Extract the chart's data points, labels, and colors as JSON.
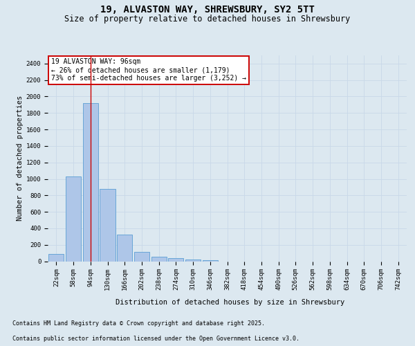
{
  "title_line1": "19, ALVASTON WAY, SHREWSBURY, SY2 5TT",
  "title_line2": "Size of property relative to detached houses in Shrewsbury",
  "xlabel": "Distribution of detached houses by size in Shrewsbury",
  "ylabel": "Number of detached properties",
  "bar_labels": [
    "22sqm",
    "58sqm",
    "94sqm",
    "130sqm",
    "166sqm",
    "202sqm",
    "238sqm",
    "274sqm",
    "310sqm",
    "346sqm",
    "382sqm",
    "418sqm",
    "454sqm",
    "490sqm",
    "526sqm",
    "562sqm",
    "598sqm",
    "634sqm",
    "670sqm",
    "706sqm",
    "742sqm"
  ],
  "bar_values": [
    90,
    1030,
    1920,
    880,
    320,
    115,
    52,
    40,
    25,
    12,
    0,
    0,
    0,
    0,
    0,
    0,
    0,
    0,
    0,
    0,
    0
  ],
  "bar_color": "#aec6e8",
  "bar_edge_color": "#5a9fd4",
  "vline_x_index": 2,
  "vline_color": "#cc0000",
  "annotation_text": "19 ALVASTON WAY: 96sqm\n← 26% of detached houses are smaller (1,179)\n73% of semi-detached houses are larger (3,252) →",
  "annotation_box_color": "#ffffff",
  "annotation_box_edge_color": "#cc0000",
  "ylim": [
    0,
    2500
  ],
  "yticks": [
    0,
    200,
    400,
    600,
    800,
    1000,
    1200,
    1400,
    1600,
    1800,
    2000,
    2200,
    2400
  ],
  "grid_color": "#c8d8e8",
  "background_color": "#dce8f0",
  "footer_line1": "Contains HM Land Registry data © Crown copyright and database right 2025.",
  "footer_line2": "Contains public sector information licensed under the Open Government Licence v3.0.",
  "title_fontsize": 10,
  "subtitle_fontsize": 8.5,
  "axis_label_fontsize": 7.5,
  "tick_fontsize": 6.5,
  "annotation_fontsize": 7,
  "footer_fontsize": 6
}
